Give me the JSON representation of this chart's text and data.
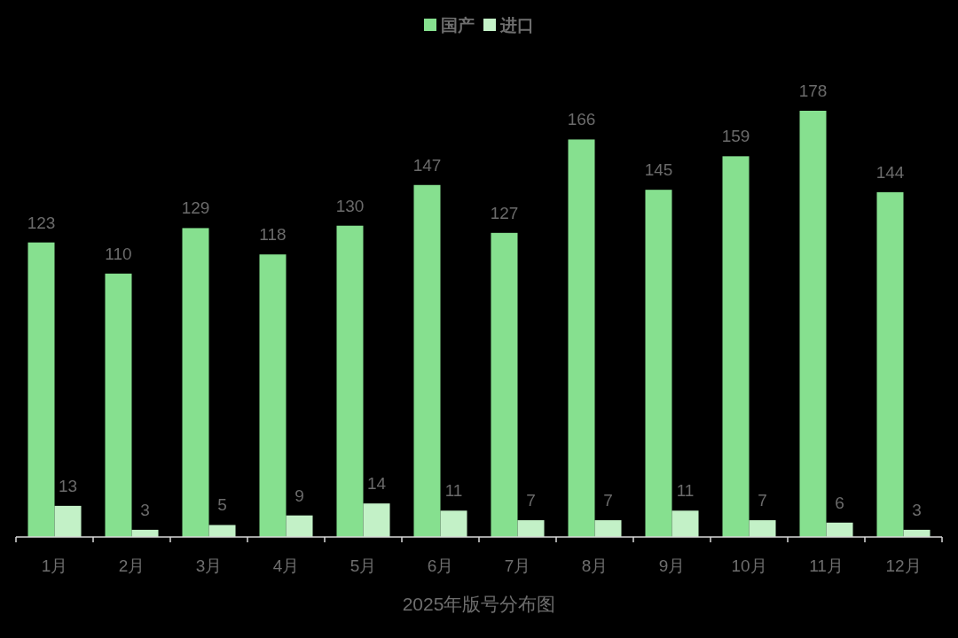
{
  "chart_data": {
    "type": "bar",
    "title": "2025年版号分布图",
    "categories": [
      "1月",
      "2月",
      "3月",
      "4月",
      "5月",
      "6月",
      "7月",
      "8月",
      "9月",
      "10月",
      "11月",
      "12月"
    ],
    "series": [
      {
        "name": "国产",
        "color": "#86e08f",
        "values": [
          123,
          110,
          129,
          118,
          130,
          147,
          127,
          166,
          145,
          159,
          178,
          144
        ]
      },
      {
        "name": "进口",
        "color": "#c3f1c7",
        "values": [
          13,
          3,
          5,
          9,
          14,
          11,
          7,
          7,
          11,
          7,
          6,
          3
        ]
      }
    ],
    "data_labels": true,
    "legend": "top",
    "grid": false
  }
}
